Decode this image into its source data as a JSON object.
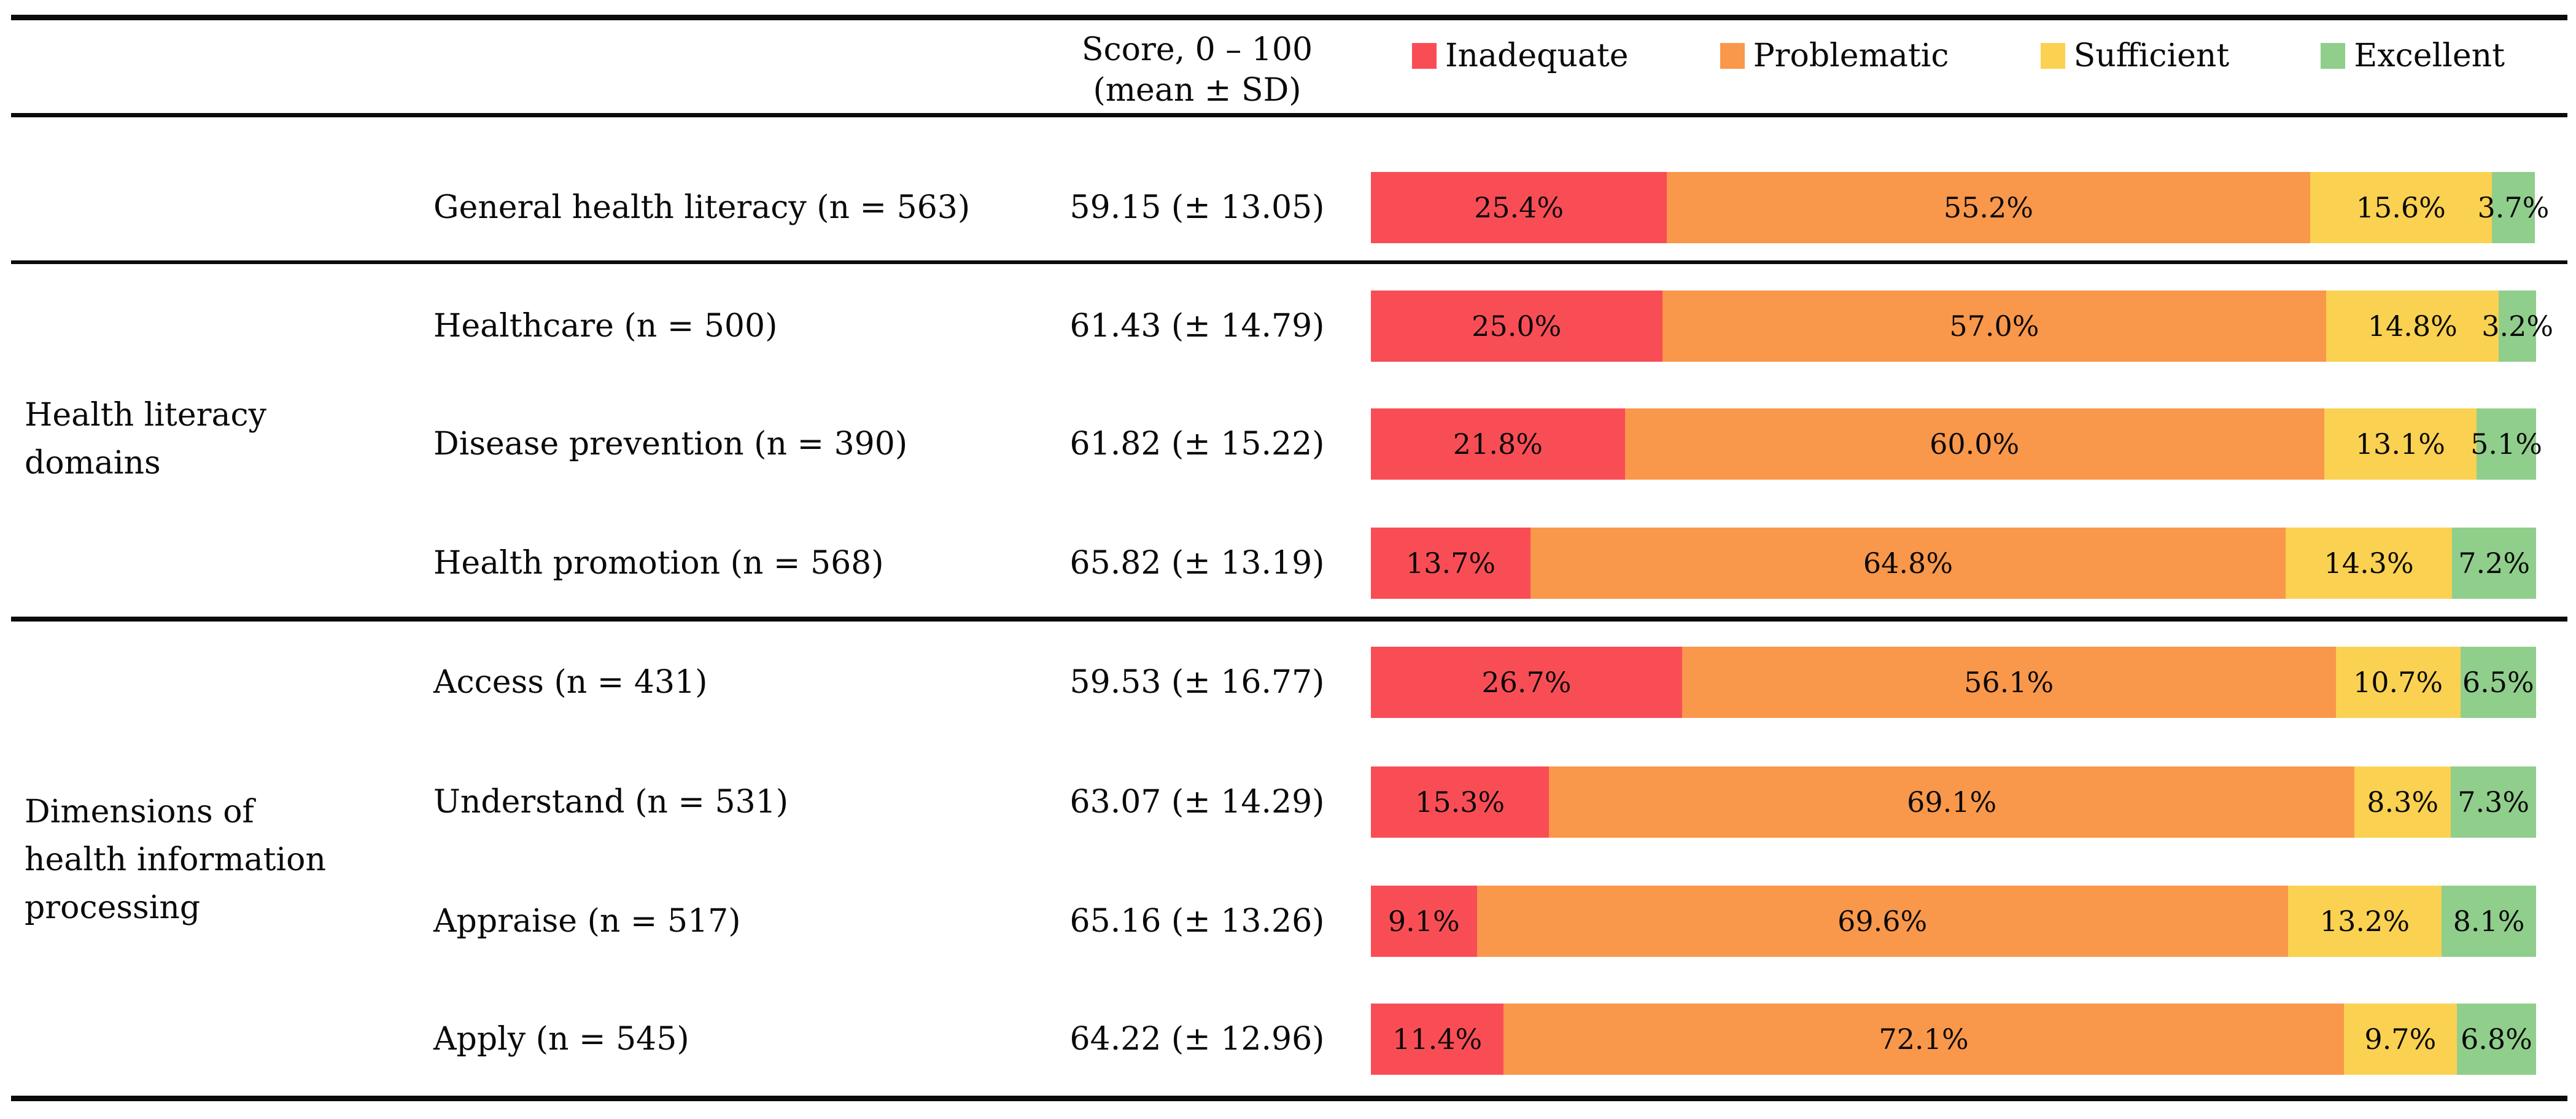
{
  "header": {
    "score_line1": "Score, 0 – 100",
    "score_line2": "(mean ± SD)"
  },
  "legend": {
    "items": [
      {
        "label": "Inadequate",
        "color": "#F94D55"
      },
      {
        "label": "Problematic",
        "color": "#F9974B"
      },
      {
        "label": "Sufficient",
        "color": "#FAD151"
      },
      {
        "label": "Excellent",
        "color": "#90CE8C"
      }
    ]
  },
  "groups": [
    {
      "label": "Health literacy\ndomains"
    },
    {
      "label": "Dimensions of\nhealth information\nprocessing"
    }
  ],
  "rows": [
    {
      "label": "General health literacy (n = 563)",
      "score": "59.15 (± 13.05)",
      "segments": [
        {
          "value": 25.4,
          "text": "25.4%"
        },
        {
          "value": 55.2,
          "text": "55.2%"
        },
        {
          "value": 15.6,
          "text": "15.6%"
        },
        {
          "value": 3.7,
          "text": "3.7%"
        }
      ]
    },
    {
      "label": "Healthcare (n = 500)",
      "score": "61.43 (± 14.79)",
      "segments": [
        {
          "value": 25.0,
          "text": "25.0%"
        },
        {
          "value": 57.0,
          "text": "57.0%"
        },
        {
          "value": 14.8,
          "text": "14.8%"
        },
        {
          "value": 3.2,
          "text": "3.2%"
        }
      ]
    },
    {
      "label": "Disease prevention (n = 390)",
      "score": "61.82 (± 15.22)",
      "segments": [
        {
          "value": 21.8,
          "text": "21.8%"
        },
        {
          "value": 60.0,
          "text": "60.0%"
        },
        {
          "value": 13.1,
          "text": "13.1%"
        },
        {
          "value": 5.1,
          "text": "5.1%"
        }
      ]
    },
    {
      "label": "Health promotion (n = 568)",
      "score": "65.82 (± 13.19)",
      "segments": [
        {
          "value": 13.7,
          "text": "13.7%"
        },
        {
          "value": 64.8,
          "text": "64.8%"
        },
        {
          "value": 14.3,
          "text": "14.3%"
        },
        {
          "value": 7.2,
          "text": "7.2%"
        }
      ]
    },
    {
      "label": "Access (n = 431)",
      "score": "59.53 (± 16.77)",
      "segments": [
        {
          "value": 26.7,
          "text": "26.7%"
        },
        {
          "value": 56.1,
          "text": "56.1%"
        },
        {
          "value": 10.7,
          "text": "10.7%"
        },
        {
          "value": 6.5,
          "text": "6.5%"
        }
      ]
    },
    {
      "label": "Understand (n = 531)",
      "score": "63.07 (± 14.29)",
      "segments": [
        {
          "value": 15.3,
          "text": "15.3%"
        },
        {
          "value": 69.1,
          "text": "69.1%"
        },
        {
          "value": 8.3,
          "text": "8.3%"
        },
        {
          "value": 7.3,
          "text": "7.3%"
        }
      ]
    },
    {
      "label": "Appraise (n = 517)",
      "score": "65.16 (± 13.26)",
      "segments": [
        {
          "value": 9.1,
          "text": "9.1%"
        },
        {
          "value": 69.6,
          "text": "69.6%"
        },
        {
          "value": 13.2,
          "text": "13.2%"
        },
        {
          "value": 8.1,
          "text": "8.1%"
        }
      ]
    },
    {
      "label": "Apply (n = 545)",
      "score": "64.22 (± 12.96)",
      "segments": [
        {
          "value": 11.4,
          "text": "11.4%"
        },
        {
          "value": 72.1,
          "text": "72.1%"
        },
        {
          "value": 9.7,
          "text": "9.7%"
        },
        {
          "value": 6.8,
          "text": "6.8%"
        }
      ]
    }
  ],
  "chart_data": {
    "type": "bar",
    "stacked": true,
    "orientation": "horizontal",
    "unit": "%",
    "title": "",
    "xlabel": "",
    "ylabel": "",
    "xlim": [
      0,
      100
    ],
    "grid": false,
    "legend_position": "top",
    "categories": [
      "General health literacy (n = 563)",
      "Healthcare (n = 500)",
      "Disease prevention (n = 390)",
      "Health promotion (n = 568)",
      "Access (n = 431)",
      "Understand (n = 531)",
      "Appraise (n = 517)",
      "Apply (n = 545)"
    ],
    "category_groups": [
      {
        "label": "Health literacy domains",
        "categories": [
          "Healthcare (n = 500)",
          "Disease prevention (n = 390)",
          "Health promotion (n = 568)"
        ]
      },
      {
        "label": "Dimensions of health information processing",
        "categories": [
          "Access (n = 431)",
          "Understand (n = 531)",
          "Appraise (n = 517)",
          "Apply (n = 545)"
        ]
      }
    ],
    "score_column_header": "Score, 0 – 100 (mean ± SD)",
    "scores_mean_sd": [
      "59.15 (± 13.05)",
      "61.43 (± 14.79)",
      "61.82 (± 15.22)",
      "65.82 (± 13.19)",
      "59.53 (± 16.77)",
      "63.07 (± 14.29)",
      "65.16 (± 13.26)",
      "64.22 (± 12.96)"
    ],
    "series": [
      {
        "name": "Inadequate",
        "color": "#F94D55",
        "values": [
          25.4,
          25.0,
          21.8,
          13.7,
          26.7,
          15.3,
          9.1,
          11.4
        ]
      },
      {
        "name": "Problematic",
        "color": "#F9974B",
        "values": [
          55.2,
          57.0,
          60.0,
          64.8,
          56.1,
          69.1,
          69.6,
          72.1
        ]
      },
      {
        "name": "Sufficient",
        "color": "#FAD151",
        "values": [
          15.6,
          14.8,
          13.1,
          14.3,
          10.7,
          8.3,
          13.2,
          9.7
        ]
      },
      {
        "name": "Excellent",
        "color": "#90CE8C",
        "values": [
          3.7,
          3.2,
          5.1,
          7.2,
          6.5,
          7.3,
          8.1,
          6.8
        ]
      }
    ]
  }
}
